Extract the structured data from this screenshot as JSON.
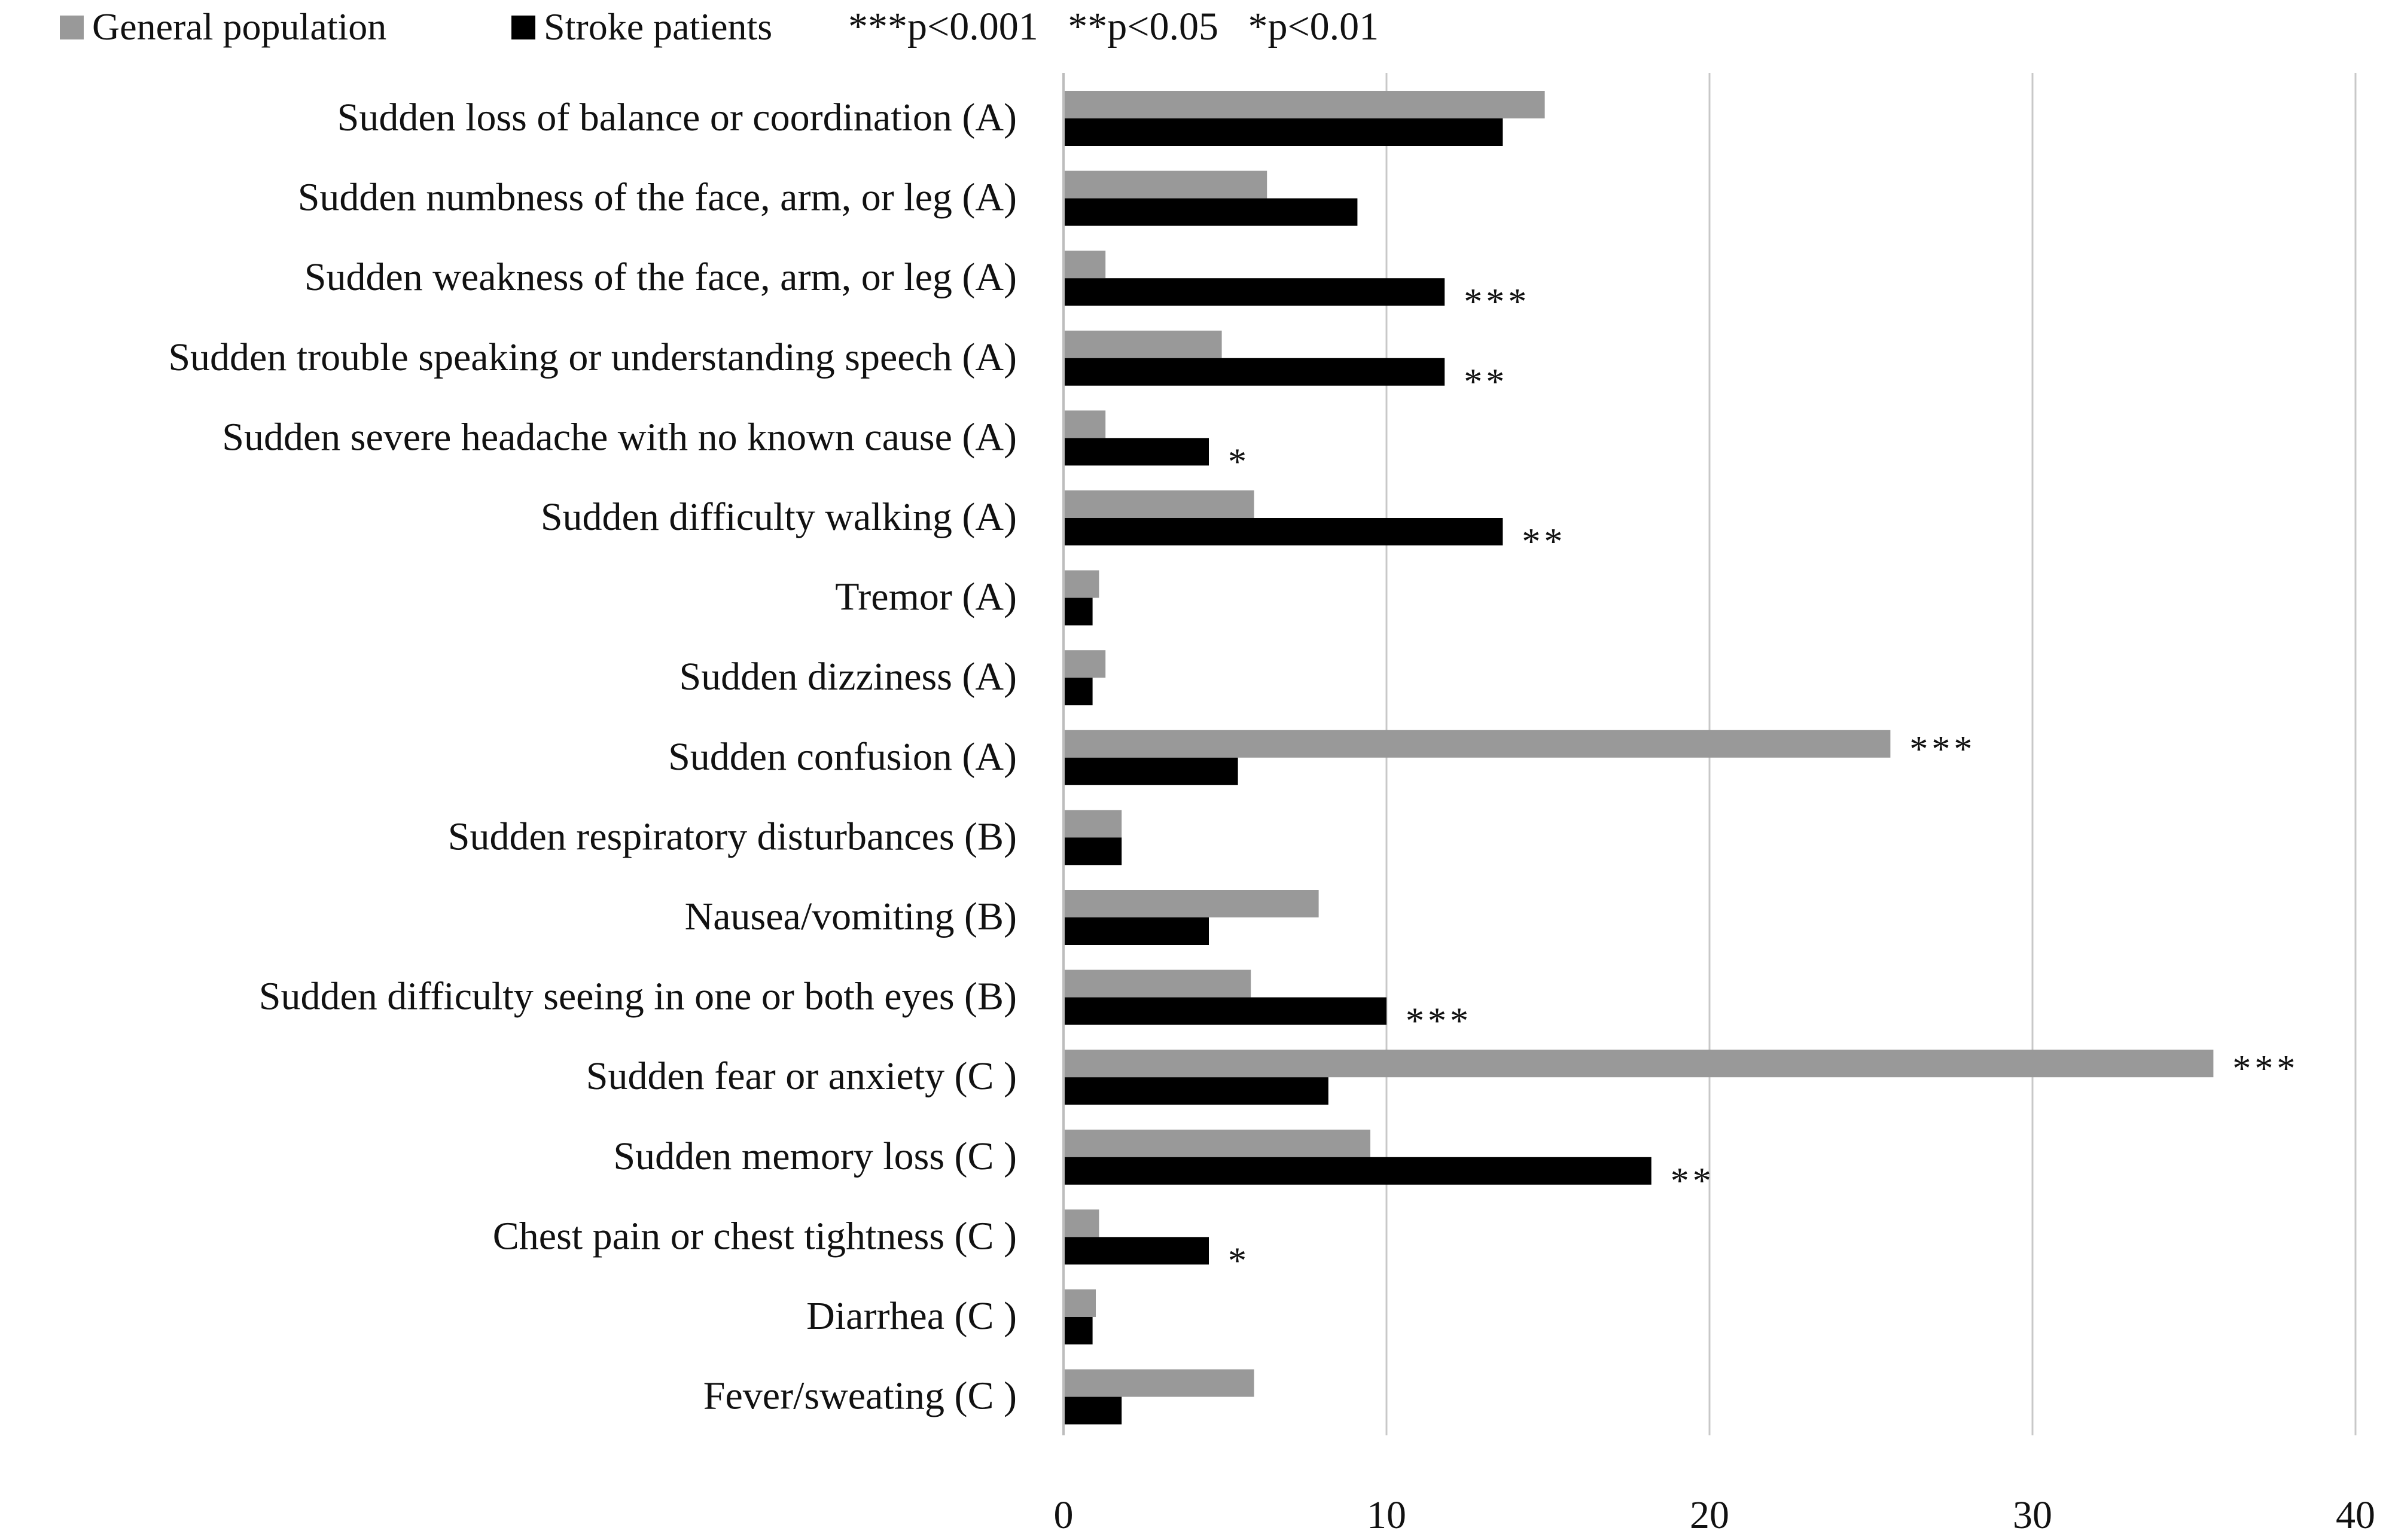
{
  "chart_data": {
    "type": "bar",
    "orientation": "horizontal",
    "categories": [
      "Sudden loss of balance or coordination (A)",
      "Sudden numbness of the face, arm, or leg (A)",
      "Sudden weakness of the face, arm, or leg (A)",
      "Sudden trouble speaking or understanding speech (A)",
      "Sudden severe headache with no known cause (A)",
      "Sudden difficulty walking (A)",
      "Tremor (A)",
      "Sudden dizziness (A)",
      "Sudden confusion (A)",
      "Sudden respiratory disturbances (B)",
      "Nausea/vomiting (B)",
      "Sudden difficulty seeing in one or both eyes (B)",
      "Sudden fear or anxiety (C )",
      "Sudden memory loss (C )",
      "Chest pain or chest tightness (C )",
      "Diarrhea (C )",
      "Fever/sweating (C )"
    ],
    "series": [
      {
        "name": "General population",
        "color": "#999999",
        "values": [
          14.9,
          6.3,
          1.3,
          4.9,
          1.3,
          5.9,
          1.1,
          1.3,
          25.6,
          1.8,
          7.9,
          5.8,
          35.6,
          9.5,
          1.1,
          1.0,
          5.9
        ]
      },
      {
        "name": "Stroke patients",
        "color": "#000000",
        "values": [
          13.6,
          9.1,
          11.8,
          11.8,
          4.5,
          13.6,
          0.9,
          0.9,
          5.4,
          1.8,
          4.5,
          10.0,
          8.2,
          18.2,
          4.5,
          0.9,
          1.8
        ]
      }
    ],
    "significance": [
      "",
      "",
      "***",
      "**",
      "*",
      "**",
      "",
      "",
      "***",
      "",
      "",
      "***",
      "***",
      "**",
      "*",
      "",
      ""
    ],
    "legend": {
      "position": "top-left",
      "significance_note": "***p<0.001   **p<0.05   *p<0.01"
    },
    "x_ticks": [
      "0",
      "10",
      "20",
      "30",
      "40"
    ],
    "xlim": [
      0,
      40
    ],
    "grid": true,
    "title": "",
    "xlabel": "",
    "ylabel": ""
  }
}
